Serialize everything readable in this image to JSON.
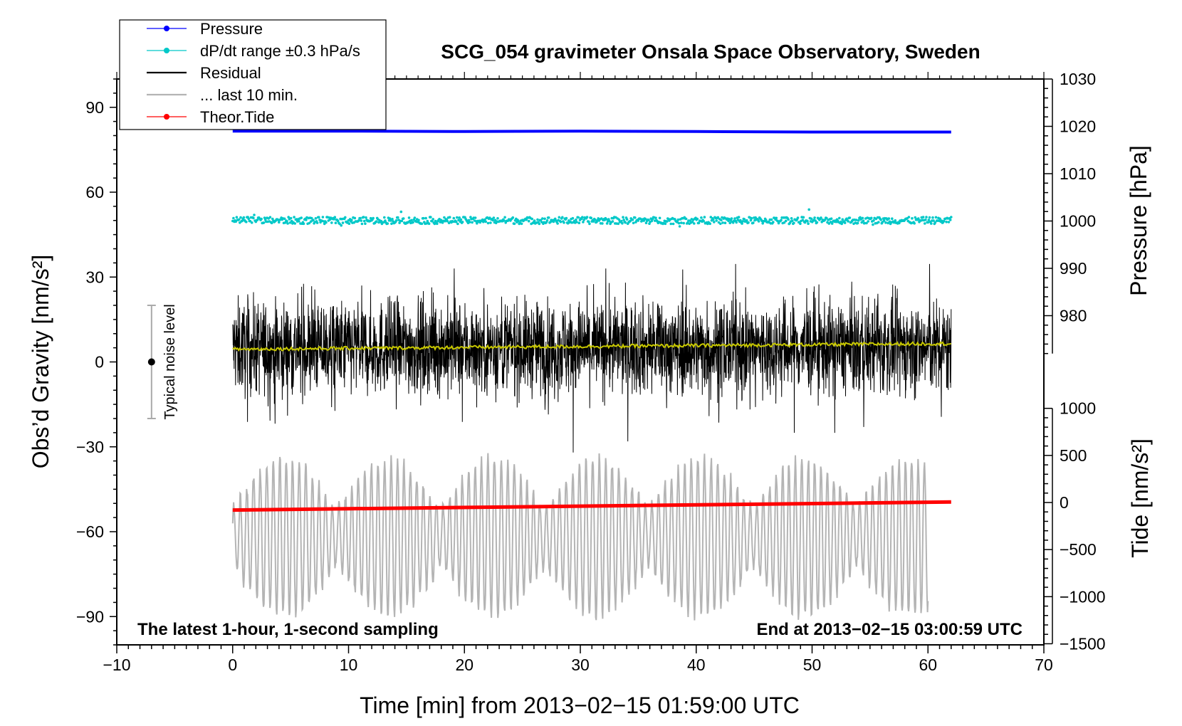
{
  "chart_data": {
    "type": "line",
    "title": "SCG_054 gravimeter Onsala Space Observatory, Sweden",
    "xlabel": "Time [min] from 2013−02−15 01:59:00 UTC",
    "ylabel_left": "Obs’d Gravity [nm/s²]",
    "ylabel_pressure": "Pressure [hPa]",
    "ylabel_tide": "Tide [nm/s²]",
    "xlim": [
      -10,
      70
    ],
    "ylim": [
      -100,
      100
    ],
    "pressure_axis_range": [
      970,
      1030
    ],
    "tide_axis_range": [
      -1500,
      1000
    ],
    "x_ticks": [
      {
        "v": -10,
        "label": "−10"
      },
      {
        "v": 0,
        "label": "0"
      },
      {
        "v": 10,
        "label": "10"
      },
      {
        "v": 20,
        "label": "20"
      },
      {
        "v": 30,
        "label": "30"
      },
      {
        "v": 40,
        "label": "40"
      },
      {
        "v": 50,
        "label": "50"
      },
      {
        "v": 60,
        "label": "60"
      },
      {
        "v": 70,
        "label": "70"
      }
    ],
    "y_ticks": [
      {
        "v": 90,
        "label": "90"
      },
      {
        "v": 60,
        "label": "60"
      },
      {
        "v": 30,
        "label": "30"
      },
      {
        "v": 0,
        "label": "0"
      },
      {
        "v": -30,
        "label": "−30"
      },
      {
        "v": -60,
        "label": "−60"
      },
      {
        "v": -90,
        "label": "−90"
      }
    ],
    "pressure_ticks": [
      {
        "v": 1030,
        "label": "1030"
      },
      {
        "v": 1020,
        "label": "1020"
      },
      {
        "v": 1010,
        "label": "1010"
      },
      {
        "v": 1000,
        "label": "1000"
      },
      {
        "v": 990,
        "label": "990"
      },
      {
        "v": 980,
        "label": "980"
      }
    ],
    "tide_ticks": [
      {
        "v": 1000,
        "label": "1000"
      },
      {
        "v": 500,
        "label": "500"
      },
      {
        "v": 0,
        "label": "0"
      },
      {
        "v": -500,
        "label": "−500"
      },
      {
        "v": -1000,
        "label": "−1000"
      },
      {
        "v": -1500,
        "label": "−1500"
      }
    ],
    "legend": [
      {
        "label": "Pressure",
        "color": "#0000ff",
        "marker": true
      },
      {
        "label": "dP/dt range ±0.3 hPa/s",
        "color": "#00c8c8",
        "marker": true
      },
      {
        "label": "Residual",
        "color": "#000000",
        "marker": false
      },
      {
        "label": "... last 10 min.",
        "color": "#b4b4b4",
        "marker": false
      },
      {
        "label": "Theor.Tide",
        "color": "#ff0000",
        "marker": true
      }
    ],
    "series": [
      {
        "name": "Pressure",
        "axis": "pressure",
        "color": "#0000ff",
        "x": [
          0,
          10,
          20,
          30,
          40,
          50,
          62
        ],
        "values": [
          1019.0,
          1019.0,
          1018.9,
          1019.0,
          1018.9,
          1018.8,
          1018.8
        ]
      },
      {
        "name": "dP/dt range ±0.3 hPa/s",
        "axis": "left",
        "color": "#00c8c8",
        "center": 50,
        "spread": 1.2,
        "x_range": [
          0,
          62
        ]
      },
      {
        "name": "Residual",
        "axis": "left",
        "color": "#000000",
        "x_range": [
          0,
          62
        ],
        "typical_amplitude": 15,
        "min": -32,
        "max": 40
      },
      {
        "name": "Residual smoothed",
        "axis": "left",
        "color": "#c8c800",
        "x": [
          0,
          62
        ],
        "values": [
          4.5,
          6.5
        ]
      },
      {
        "name": "... last 10 min.",
        "axis": "left",
        "color": "#b4b4b4",
        "x_range": [
          0,
          60
        ],
        "center": -62,
        "min": -92,
        "max": -30
      },
      {
        "name": "Theor.Tide",
        "axis": "tide",
        "color": "#ff0000",
        "x": [
          0,
          62
        ],
        "values": [
          -80,
          5
        ]
      }
    ],
    "noise_bar": {
      "x": -7,
      "center": 0,
      "half_range": 20,
      "label": "Typical noise level"
    },
    "annotation_left": "The latest 1-hour, 1-second sampling",
    "annotation_right": "End at 2013−02−15 03:00:59 UTC"
  }
}
